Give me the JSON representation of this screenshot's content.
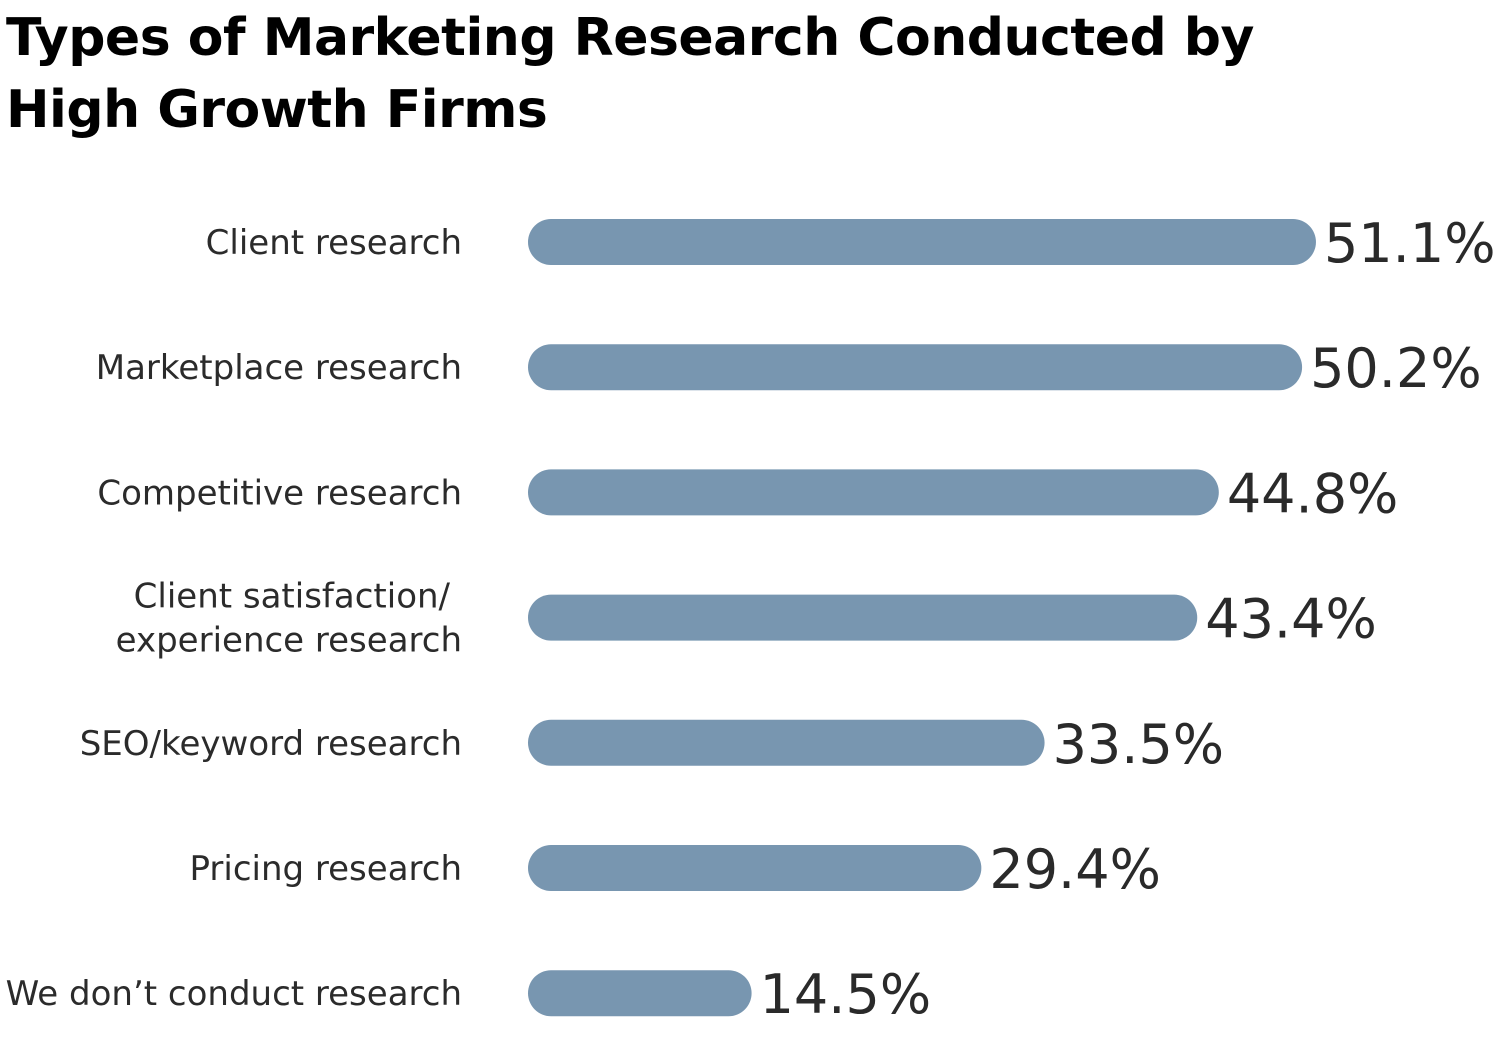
{
  "chart_data": {
    "type": "bar",
    "orientation": "horizontal",
    "title": "Types of Marketing Research Conducted by High Growth Firms",
    "categories": [
      "Client research",
      "Marketplace research",
      "Competitive research",
      "Client satisfaction/\nexperience research",
      "SEO/keyword research",
      "Pricing research",
      "We don’t conduct research"
    ],
    "values": [
      51.1,
      50.2,
      44.8,
      43.4,
      33.5,
      29.4,
      14.5
    ],
    "value_labels": [
      "51.1%",
      "50.2%",
      "44.8%",
      "43.4%",
      "33.5%",
      "29.4%",
      "14.5%"
    ],
    "xlabel": "",
    "ylabel": "",
    "grid": false,
    "bar_color": "#7896b0",
    "text_color": "#2b2b2b"
  }
}
